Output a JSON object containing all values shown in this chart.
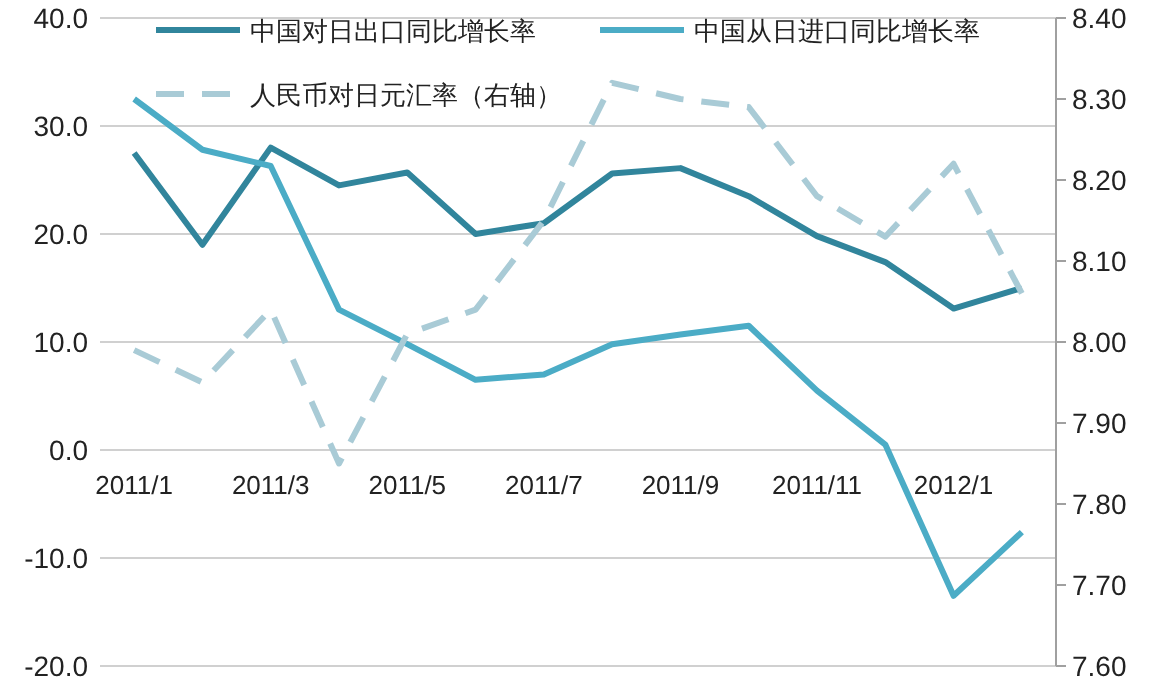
{
  "chart_data": {
    "type": "line",
    "categories": [
      "2011/1",
      null,
      "2011/3",
      null,
      "2011/5",
      null,
      "2011/7",
      null,
      "2011/9",
      null,
      "2011/11",
      null,
      "2012/1",
      null
    ],
    "series": [
      {
        "name": "中国对日出口同比增长率",
        "color": "#31859c",
        "values": [
          27.5,
          19.0,
          28.0,
          24.5,
          25.7,
          20.0,
          21.0,
          25.6,
          26.1,
          23.5,
          19.8,
          17.4,
          13.1,
          15.0
        ]
      },
      {
        "name": "中国从日进口同比增长率",
        "color": "#4bacc6",
        "values": [
          32.5,
          27.8,
          26.3,
          13.0,
          9.8,
          6.5,
          7.0,
          9.8,
          10.7,
          11.5,
          5.5,
          0.5,
          -13.5,
          -7.6
        ]
      },
      {
        "name": "人民币对日元汇率（右轴）",
        "color": "#a9cbd6",
        "axis": "y2",
        "line_style": "dashed",
        "values": [
          7.99,
          7.95,
          8.04,
          7.85,
          8.01,
          8.04,
          8.15,
          8.32,
          8.3,
          8.29,
          8.18,
          8.13,
          8.22,
          8.06
        ]
      }
    ],
    "ylim": [
      -20,
      40
    ],
    "yticks": [
      {
        "value": -20,
        "label": "-20.0"
      },
      {
        "value": -10,
        "label": "-10.0"
      },
      {
        "value": 0,
        "label": "0.0"
      },
      {
        "value": 10,
        "label": "10.0"
      },
      {
        "value": 20,
        "label": "20.0"
      },
      {
        "value": 30,
        "label": "30.0"
      },
      {
        "value": 40,
        "label": "40.0"
      }
    ],
    "y2lim": [
      7.6,
      8.4
    ],
    "y2ticks": [
      {
        "value": 7.6,
        "label": "7.60"
      },
      {
        "value": 7.7,
        "label": "7.70"
      },
      {
        "value": 7.8,
        "label": "7.80"
      },
      {
        "value": 7.9,
        "label": "7.90"
      },
      {
        "value": 8.0,
        "label": "8.00"
      },
      {
        "value": 8.1,
        "label": "8.10"
      },
      {
        "value": 8.2,
        "label": "8.20"
      },
      {
        "value": 8.3,
        "label": "8.30"
      },
      {
        "value": 8.4,
        "label": "8.40"
      }
    ],
    "grid": "y",
    "legend": "top"
  }
}
